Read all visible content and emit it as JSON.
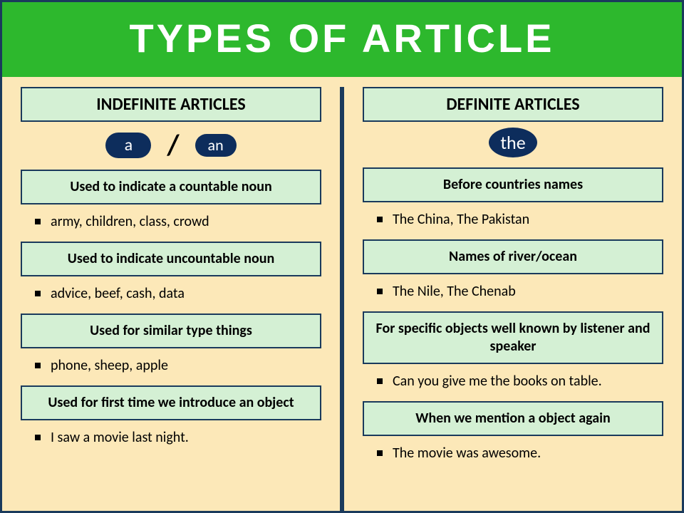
{
  "title": "TYPES OF ARTICLE",
  "colors": {
    "header_bg": "#2db82d",
    "header_text": "#ffffff",
    "page_bg": "#fce8b8",
    "border": "#1a3a5c",
    "box_bg": "#d4f0d4",
    "pill_bg": "#0d2d5c",
    "text": "#000000"
  },
  "left": {
    "heading": "INDEFINITE ARTICLES",
    "pill_a": "a",
    "slash": "/",
    "pill_an": "an",
    "rules": [
      {
        "rule": "Used to indicate a countable noun",
        "example": "army, children, class, crowd"
      },
      {
        "rule": "Used to indicate uncountable noun",
        "example": "advice, beef, cash, data"
      },
      {
        "rule": "Used for similar type things",
        "example": "phone, sheep, apple"
      },
      {
        "rule": "Used for first time we introduce an object",
        "example": "I saw a movie last night."
      }
    ]
  },
  "right": {
    "heading": "DEFINITE ARTICLES",
    "pill_the": "the",
    "rules": [
      {
        "rule": "Before countries names",
        "example": "The China, The Pakistan"
      },
      {
        "rule": "Names of river/ocean",
        "example": "The Nile, The Chenab"
      },
      {
        "rule": "For specific objects well known by listener and speaker",
        "example": "Can you give me the books on table."
      },
      {
        "rule": "When we mention a object again",
        "example": "The movie was awesome."
      }
    ]
  }
}
